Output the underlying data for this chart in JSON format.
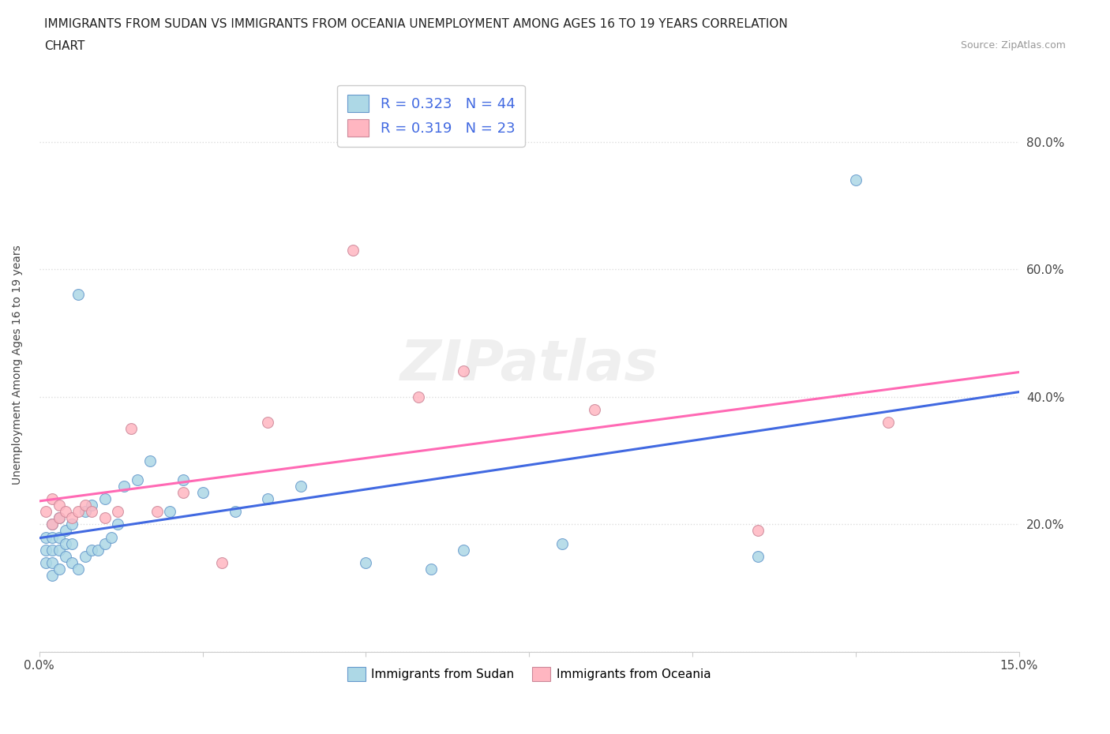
{
  "title_line1": "IMMIGRANTS FROM SUDAN VS IMMIGRANTS FROM OCEANIA UNEMPLOYMENT AMONG AGES 16 TO 19 YEARS CORRELATION",
  "title_line2": "CHART",
  "source": "Source: ZipAtlas.com",
  "ylabel": "Unemployment Among Ages 16 to 19 years",
  "xlim": [
    0.0,
    0.15
  ],
  "ylim": [
    0.0,
    0.9
  ],
  "sudan_color": "#ADD8E6",
  "sudan_edge_color": "#6699CC",
  "oceania_color": "#FFB6C1",
  "oceania_edge_color": "#CC8899",
  "sudan_R": 0.323,
  "sudan_N": 44,
  "oceania_R": 0.319,
  "oceania_N": 23,
  "legend_text_color": "#4169E1",
  "grid_color": "#DDDDDD",
  "sudan_line_color": "#4169E1",
  "oceania_line_color": "#FF69B4",
  "sudan_x": [
    0.001,
    0.001,
    0.001,
    0.002,
    0.002,
    0.002,
    0.002,
    0.002,
    0.003,
    0.003,
    0.003,
    0.003,
    0.004,
    0.004,
    0.004,
    0.005,
    0.005,
    0.005,
    0.006,
    0.006,
    0.007,
    0.007,
    0.008,
    0.008,
    0.009,
    0.01,
    0.01,
    0.011,
    0.012,
    0.013,
    0.015,
    0.017,
    0.02,
    0.022,
    0.025,
    0.03,
    0.035,
    0.04,
    0.05,
    0.06,
    0.065,
    0.08,
    0.11,
    0.125
  ],
  "sudan_y": [
    0.14,
    0.16,
    0.18,
    0.12,
    0.14,
    0.16,
    0.18,
    0.2,
    0.13,
    0.16,
    0.18,
    0.21,
    0.15,
    0.17,
    0.19,
    0.14,
    0.17,
    0.2,
    0.13,
    0.56,
    0.15,
    0.22,
    0.16,
    0.23,
    0.16,
    0.17,
    0.24,
    0.18,
    0.2,
    0.26,
    0.27,
    0.3,
    0.22,
    0.27,
    0.25,
    0.22,
    0.24,
    0.26,
    0.14,
    0.13,
    0.16,
    0.17,
    0.15,
    0.74
  ],
  "oceania_x": [
    0.001,
    0.002,
    0.002,
    0.003,
    0.003,
    0.004,
    0.005,
    0.006,
    0.007,
    0.008,
    0.01,
    0.012,
    0.014,
    0.018,
    0.022,
    0.028,
    0.035,
    0.048,
    0.058,
    0.065,
    0.085,
    0.11,
    0.13
  ],
  "oceania_y": [
    0.22,
    0.2,
    0.24,
    0.21,
    0.23,
    0.22,
    0.21,
    0.22,
    0.23,
    0.22,
    0.21,
    0.22,
    0.35,
    0.22,
    0.25,
    0.14,
    0.36,
    0.63,
    0.4,
    0.44,
    0.38,
    0.19,
    0.36
  ],
  "title_fontsize": 11,
  "tick_fontsize": 11,
  "source_fontsize": 9,
  "ylabel_fontsize": 10
}
